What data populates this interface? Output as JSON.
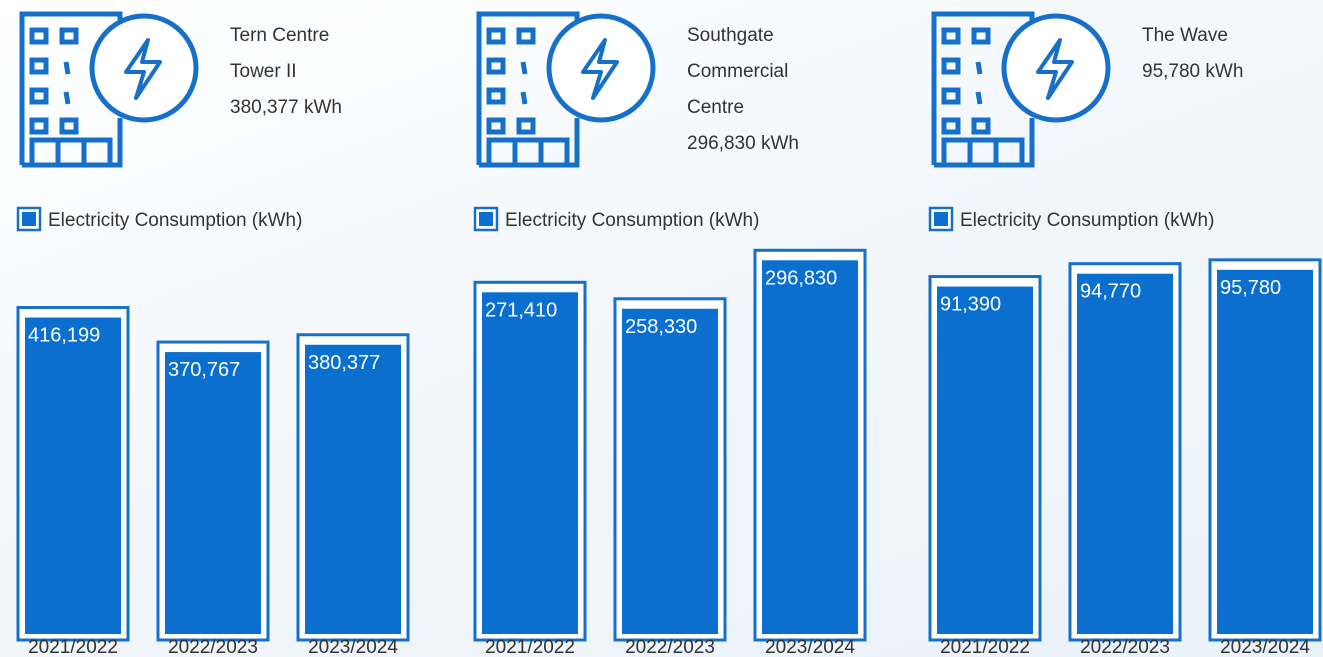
{
  "chart_data": [
    {
      "type": "bar",
      "title": "Tern Centre Tower II",
      "subtitle": "380,377 kWh",
      "legend": "Electricity Consumption (kWh)",
      "categories": [
        "2021/2022",
        "2022/2023",
        "2023/2024"
      ],
      "values": [
        416199,
        370767,
        380377
      ],
      "value_labels": [
        "416,199",
        "370,767",
        "380,377"
      ],
      "ylim": [
        0,
        505000
      ],
      "color": "#0b6fd0"
    },
    {
      "type": "bar",
      "title": "Southgate Commercial Centre",
      "subtitle": "296,830 kWh",
      "legend": "Electricity Consumption (kWh)",
      "categories": [
        "2021/2022",
        "2022/2023",
        "2023/2024"
      ],
      "values": [
        271410,
        258330,
        296830
      ],
      "value_labels": [
        "271,410",
        "258,330",
        "296,830"
      ],
      "ylim": [
        0,
        305000
      ],
      "color": "#0b6fd0"
    },
    {
      "type": "bar",
      "title": "The Wave",
      "subtitle": "95,780 kWh",
      "legend": "Electricity Consumption (kWh)",
      "categories": [
        "2021/2022",
        "2022/2023",
        "2023/2024"
      ],
      "values": [
        91390,
        94770,
        95780
      ],
      "value_labels": [
        "91,390",
        "94,770",
        "95,780"
      ],
      "ylim": [
        0,
        101000
      ],
      "color": "#0b6fd0"
    }
  ]
}
